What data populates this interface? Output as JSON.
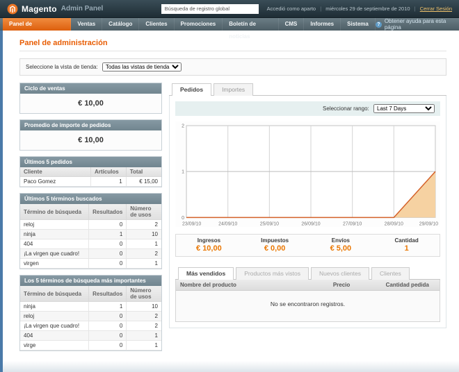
{
  "header": {
    "brand": "Magento",
    "brand_suffix": "Admin Panel",
    "search_value": "Búsqueda de registro global",
    "logged_in_text": "Accedió como aparto",
    "date_text": "miércoles 29 de septiembre de 2010",
    "logout_label": "Cerrar Sesión"
  },
  "nav": {
    "items": [
      "Panel de administración",
      "Ventas",
      "Catálogo",
      "Clientes",
      "Promociones",
      "Boletín de noticias",
      "CMS",
      "Informes",
      "Sistema"
    ],
    "help_label": "Obtener ayuda para esta página"
  },
  "page": {
    "title": "Panel de administración"
  },
  "store_switcher": {
    "label": "Seleccione la vista de tienda:",
    "selected": "Todas las vistas de tienda"
  },
  "widgets": {
    "lifetime": {
      "title": "Ciclo de ventas",
      "value": "€ 10,00"
    },
    "average": {
      "title": "Promedio de importe de pedidos",
      "value": "€ 10,00"
    },
    "last_orders": {
      "title": "Últimos 5 pedidos",
      "columns": [
        "Cliente",
        "Artículos",
        "Total"
      ],
      "rows": [
        [
          "Paco Gomez",
          "1",
          "€ 15,00"
        ]
      ]
    },
    "last_search": {
      "title": "Últimos 5 términos buscados",
      "columns": [
        "Término de búsqueda",
        "Resultados",
        "Número de usos"
      ],
      "rows": [
        [
          "reloj",
          "0",
          "2"
        ],
        [
          "ninja",
          "1",
          "10"
        ],
        [
          "404",
          "0",
          "1"
        ],
        [
          "¡La virgen que cuadro!",
          "0",
          "2"
        ],
        [
          "virgen",
          "0",
          "1"
        ]
      ]
    },
    "top_search": {
      "title": "Los 5 términos de búsqueda más importantes",
      "columns": [
        "Término de búsqueda",
        "Resultados",
        "Número de usos"
      ],
      "rows": [
        [
          "ninja",
          "1",
          "10"
        ],
        [
          "reloj",
          "0",
          "2"
        ],
        [
          "¡La virgen que cuadro!",
          "0",
          "2"
        ],
        [
          "404",
          "0",
          "1"
        ],
        [
          "virge",
          "0",
          "1"
        ]
      ]
    }
  },
  "dashboard": {
    "tabs": [
      "Pedidos",
      "Importes"
    ],
    "range_label": "Seleccionar rango:",
    "range_selected": "Last 7 Days",
    "chart_data": {
      "type": "area",
      "x": [
        "23/09/10",
        "24/09/10",
        "25/09/10",
        "26/09/10",
        "27/09/10",
        "28/09/10",
        "29/09/10"
      ],
      "values": [
        0,
        0,
        0,
        0,
        0,
        0,
        1
      ],
      "ylim": [
        0,
        2
      ],
      "yticks": [
        0,
        1,
        2
      ],
      "line_color": "#d4622a",
      "fill_color": "#f6d2a2",
      "grid": true,
      "legend": false
    },
    "totals": [
      {
        "label": "Ingresos",
        "value": "€ 10,00"
      },
      {
        "label": "Impuestos",
        "value": "€ 0,00"
      },
      {
        "label": "Envíos",
        "value": "€ 5,00"
      },
      {
        "label": "Cantidad",
        "value": "1"
      }
    ],
    "bottom_tabs": [
      "Más vendidos",
      "Productos más vistos",
      "Nuevos clientes",
      "Clientes"
    ],
    "grid": {
      "columns": [
        "Nombre del producto",
        "Precio",
        "Cantidad pedida"
      ],
      "empty_text": "No se encontraron registros."
    }
  }
}
